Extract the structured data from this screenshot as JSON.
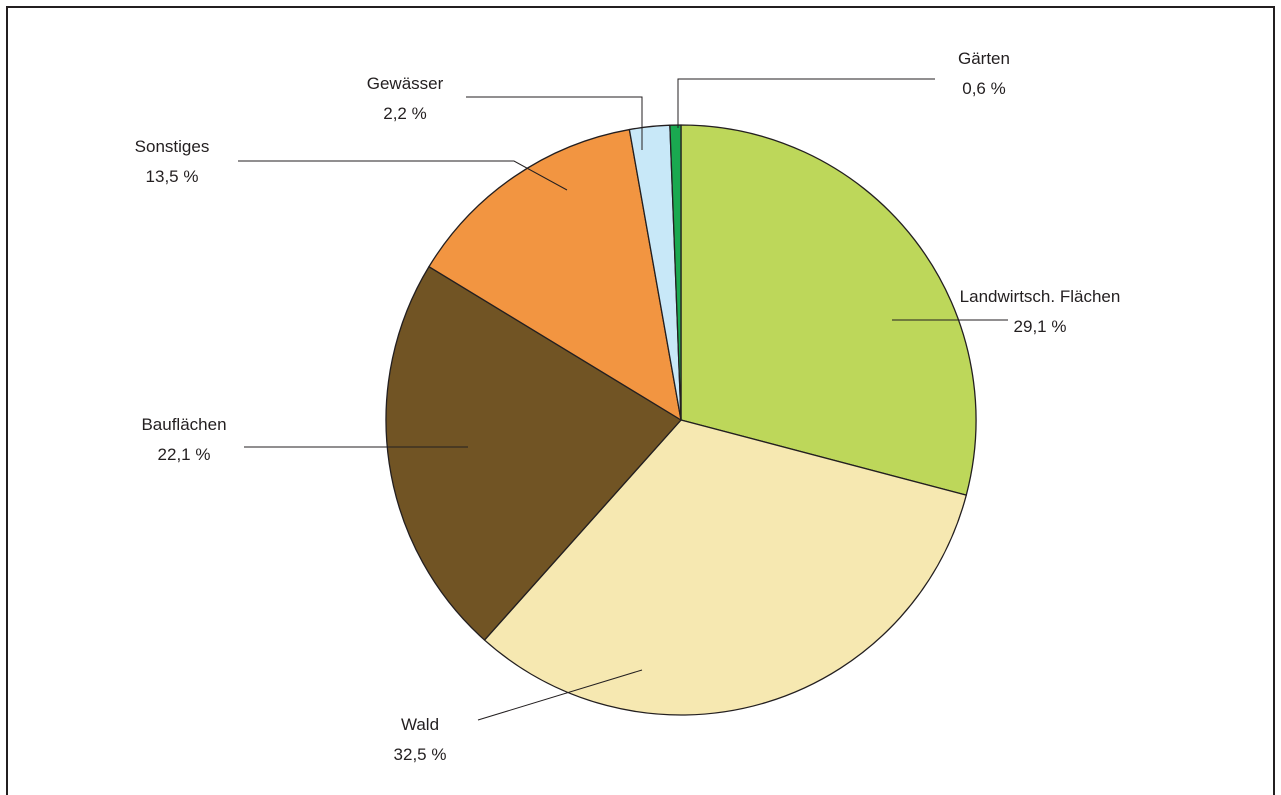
{
  "chart_data": {
    "type": "pie",
    "title": "",
    "start": "12 o'clock, clockwise",
    "slices": [
      {
        "label": "Landwirtsch. Flächen",
        "value": 29.1,
        "value_label": "29,1 %",
        "color": "#bdd75a"
      },
      {
        "label": "Wald",
        "value": 32.5,
        "value_label": "32,5 %",
        "color": "#f6e8b1"
      },
      {
        "label": "Bauflächen",
        "value": 22.1,
        "value_label": "22,1 %",
        "color": "#715424"
      },
      {
        "label": "Sonstiges",
        "value": 13.5,
        "value_label": "13,5 %",
        "color": "#f29541"
      },
      {
        "label": "Gewässer",
        "value": 2.2,
        "value_label": "2,2 %",
        "color": "#c8e8f8"
      },
      {
        "label": "Gärten",
        "value": 0.6,
        "value_label": "0,6 %",
        "color": "#1aa950"
      }
    ],
    "stroke_color": "#231f20",
    "legend": "none (labels with leader lines)"
  }
}
